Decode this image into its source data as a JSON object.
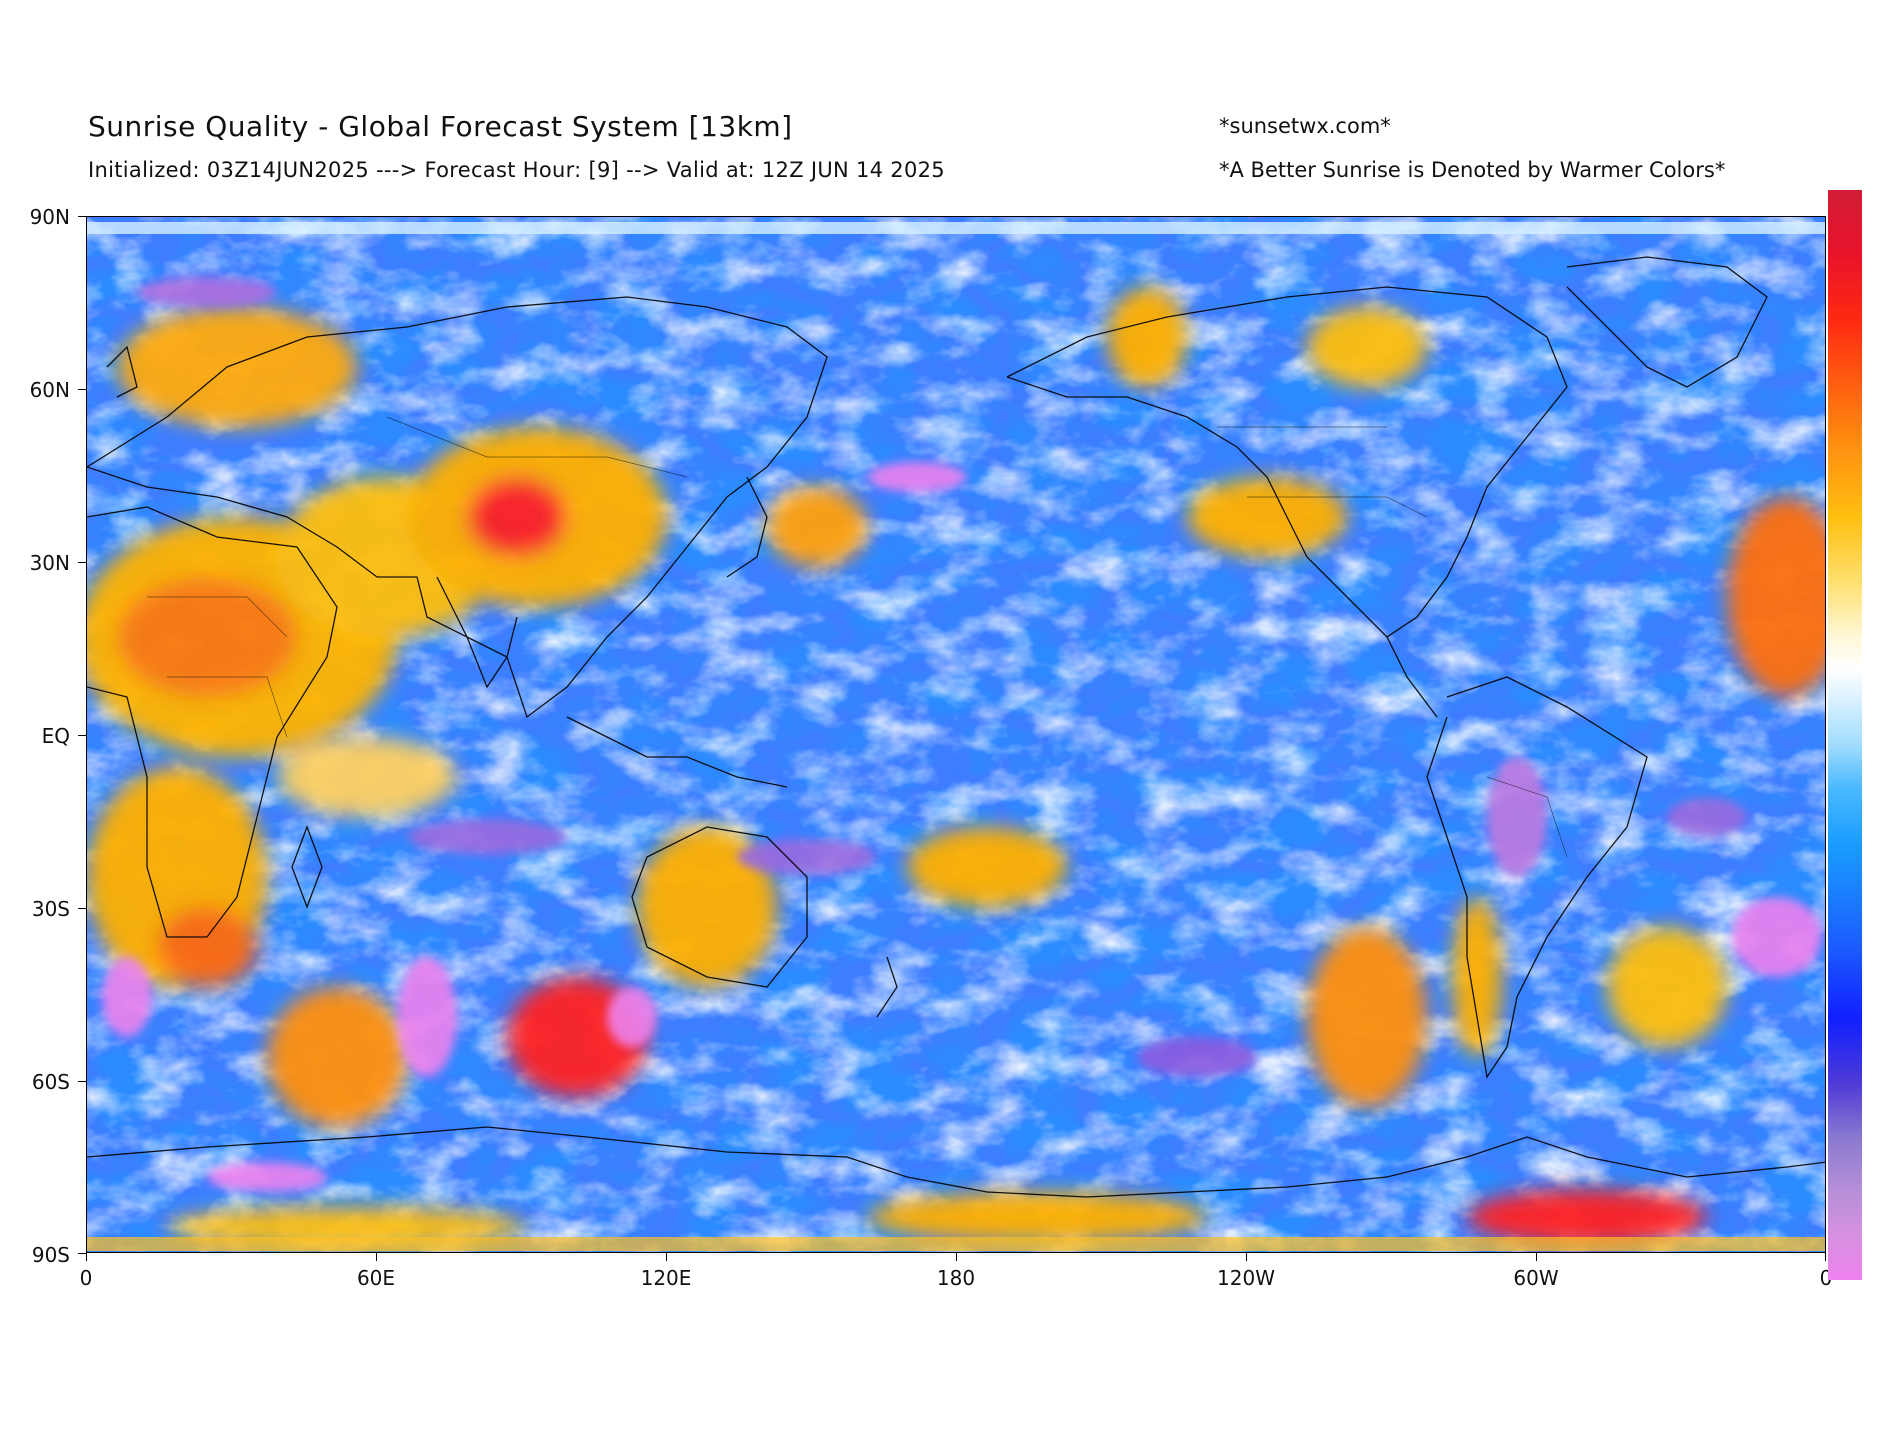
{
  "header": {
    "title": "Sunrise Quality - Global Forecast System [13km]",
    "subtitle": "Initialized: 03Z14JUN2025 ---> Forecast Hour: [9] --> Valid at: 12Z JUN 14 2025",
    "credit": "*sunsetwx.com*",
    "note": "*A Better Sunrise is Denoted by Warmer Colors*"
  },
  "axes": {
    "y_ticks": [
      "90N",
      "60N",
      "30N",
      "EQ",
      "30S",
      "60S",
      "90S"
    ],
    "x_ticks": [
      "0",
      "60E",
      "120E",
      "180",
      "120W",
      "60W",
      "0"
    ]
  },
  "map": {
    "projection": "equirectangular",
    "lon_range": [
      0,
      360
    ],
    "lat_range": [
      -90,
      90
    ],
    "variable": "Sunrise Quality",
    "colors": {
      "poor": "#1a58ff",
      "very_poor": "#ee82ee",
      "neutral": "#ffffff",
      "good": "#ffbf10",
      "best": "#e8132a"
    }
  },
  "colorbar": {
    "orientation": "vertical",
    "top_color": "#d01c34",
    "bottom_color": "#ee82ee"
  }
}
